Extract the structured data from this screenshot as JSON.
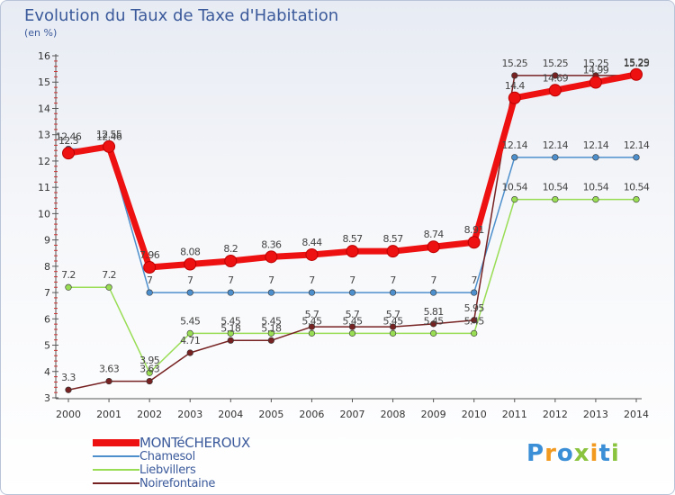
{
  "header": {
    "title": "Evolution du Taux de Taxe d'Habitation",
    "subtitle": "(en %)"
  },
  "chart_data": {
    "type": "line",
    "title": "Evolution du Taux de Taxe d'Habitation",
    "ylabel": "(en %)",
    "x": [
      "2000",
      "2001",
      "2002",
      "2003",
      "2004",
      "2005",
      "2006",
      "2007",
      "2008",
      "2009",
      "2010",
      "2011",
      "2012",
      "2013",
      "2014"
    ],
    "ylim": [
      3,
      16
    ],
    "yticks": [
      "3",
      "4",
      "5",
      "6",
      "7",
      "8",
      "9",
      "10",
      "11",
      "12",
      "13",
      "14",
      "15",
      "16"
    ],
    "grid": false,
    "legend_position": "bottom-left",
    "series": [
      {
        "name": "MONTéCHEROUX",
        "color": "#ee1111",
        "values": [
          12.3,
          12.55,
          7.96,
          8.08,
          8.2,
          8.36,
          8.44,
          8.57,
          8.57,
          8.74,
          8.91,
          14.4,
          14.69,
          14.99,
          15.29
        ],
        "labels": [
          "12.3",
          "12.55",
          "7.96",
          "8.08",
          "8.2",
          "8.36",
          "8.44",
          "8.57",
          "8.57",
          "8.74",
          "8.91",
          "14.4",
          "14.69",
          "14.99",
          "15.29"
        ]
      },
      {
        "name": "Chamesol",
        "color": "#4d8fcc",
        "values": [
          12.46,
          12.46,
          7,
          7,
          7,
          7,
          7,
          7,
          7,
          7,
          7,
          12.14,
          12.14,
          12.14,
          12.14
        ],
        "labels": [
          "12.46",
          "12.46",
          "7",
          "7",
          "7",
          "7",
          "7",
          "7",
          "7",
          "7",
          "7",
          "12.14",
          "12.14",
          "12.14",
          "12.14"
        ]
      },
      {
        "name": "Liebvillers",
        "color": "#99dd55",
        "values": [
          7.2,
          7.2,
          3.95,
          5.45,
          5.45,
          5.45,
          5.45,
          5.45,
          5.45,
          5.45,
          5.45,
          10.54,
          10.54,
          10.54,
          10.54
        ],
        "labels": [
          "7.2",
          "7.2",
          "3.95",
          "5.45",
          "5.45",
          "5.45",
          "5.45",
          "5.45",
          "5.45",
          "5.45",
          "5.45",
          "10.54",
          "10.54",
          "10.54",
          "10.54"
        ]
      },
      {
        "name": "Noirefontaine",
        "color": "#772222",
        "values": [
          3.3,
          3.63,
          3.63,
          4.71,
          5.18,
          5.18,
          5.7,
          5.7,
          5.7,
          5.81,
          5.95,
          15.25,
          15.25,
          15.25,
          15.25
        ],
        "labels": [
          "3.3",
          "3.63",
          "3.63",
          "4.71",
          "5.18",
          "5.18",
          "5.7",
          "5.7",
          "5.7",
          "5.81",
          "5.95",
          "15.25",
          "15.25",
          "15.25",
          "15.25"
        ]
      }
    ]
  },
  "legend": [
    {
      "label": "MONTéCHEROUX",
      "color": "#ee1111"
    },
    {
      "label": "Chamesol",
      "color": "#4d8fcc"
    },
    {
      "label": "Liebvillers",
      "color": "#99dd55"
    },
    {
      "label": "Noirefontaine",
      "color": "#772222"
    }
  ],
  "logo": {
    "text": "Proxiti",
    "letters": [
      "P",
      "r",
      "o",
      "x",
      "i",
      "t",
      "i"
    ],
    "colors": [
      "#3b8fd6",
      "#f29a1f",
      "#3b8fd6",
      "#8ac43f",
      "#f29a1f",
      "#3b8fd6",
      "#8ac43f"
    ]
  }
}
